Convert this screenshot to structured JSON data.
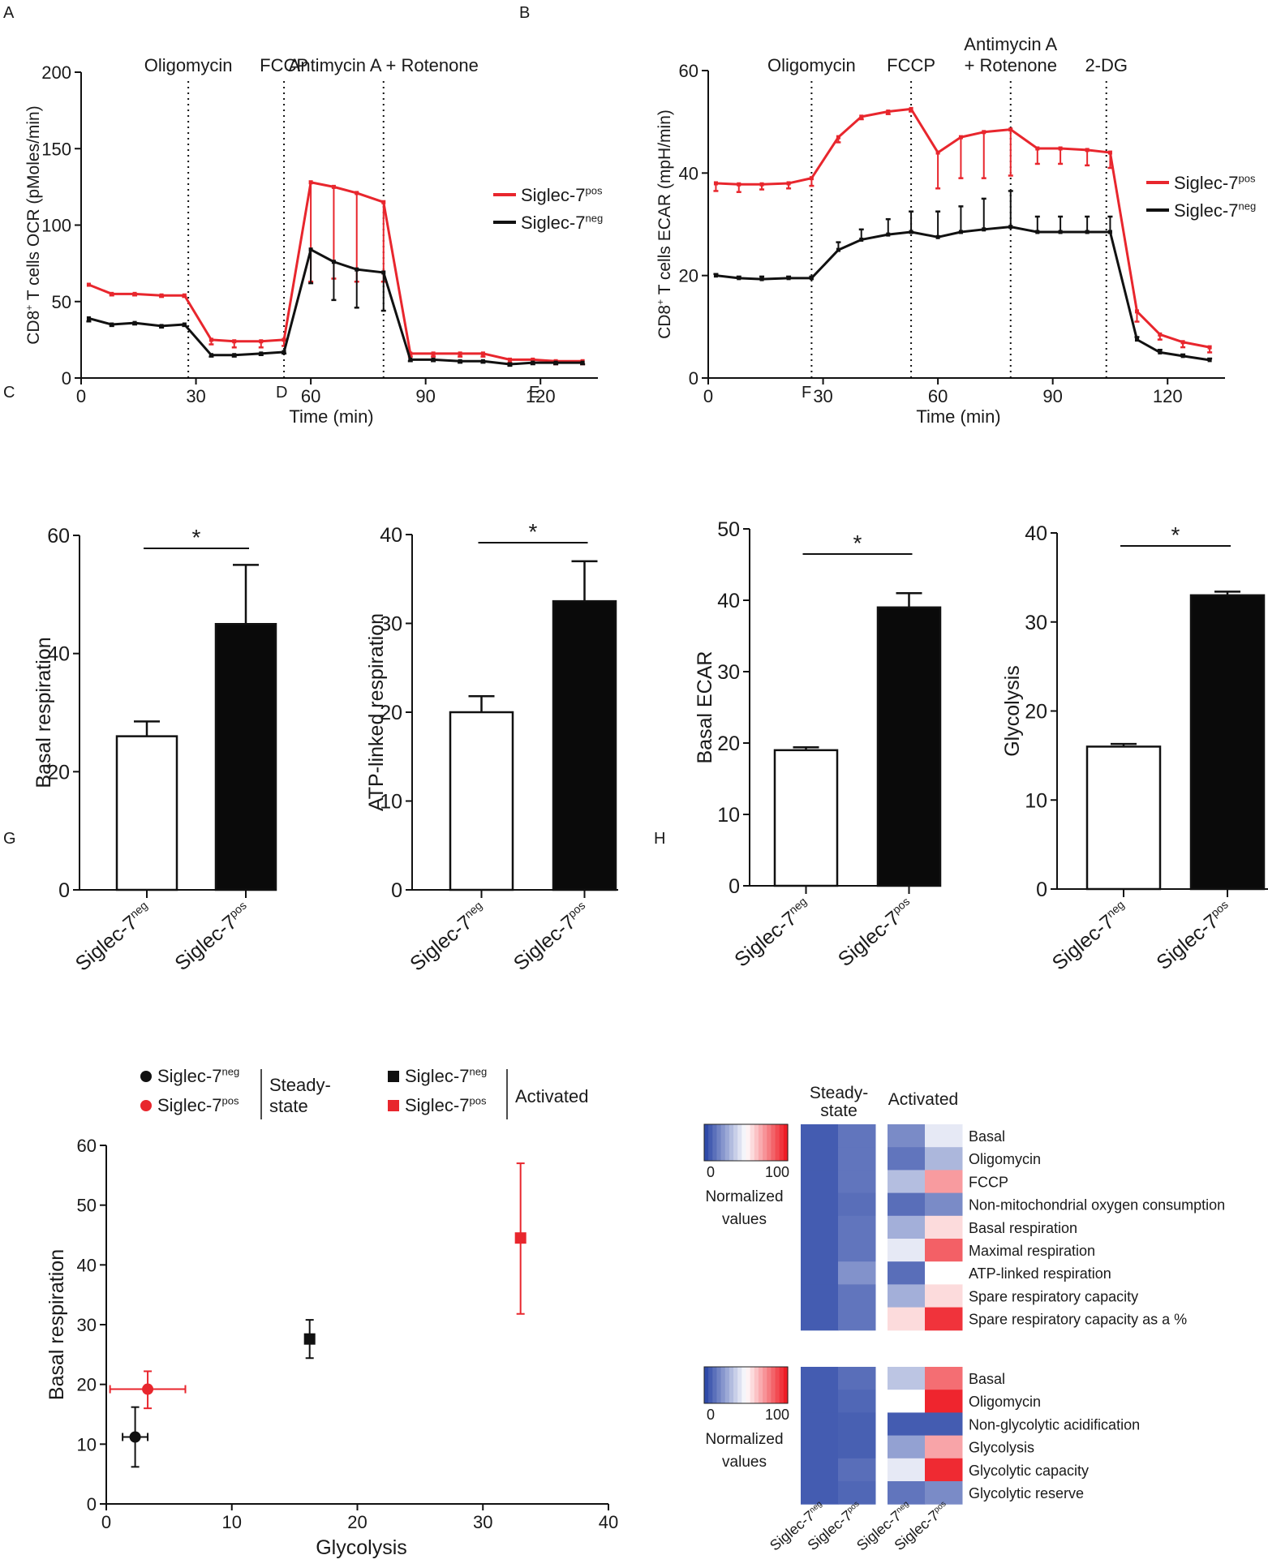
{
  "colors": {
    "pos": "#e8262d",
    "neg": "#111111",
    "heat_low": "#2f4aa8",
    "heat_mid": "#ffffff",
    "heat_high": "#ee1c25"
  },
  "chart_data": [
    {
      "id": "A",
      "panel_label": "A",
      "type": "line",
      "ylabel_pre": "CD8",
      "ylabel_sup": "+",
      "ylabel_post": " T cells OCR (pMoles/min)",
      "xlabel": "Time (min)",
      "xlim": [
        0,
        135
      ],
      "ylim": [
        0,
        200
      ],
      "xticks": [
        0,
        30,
        60,
        90,
        120
      ],
      "yticks": [
        0,
        50,
        100,
        150,
        200
      ],
      "injections": [
        {
          "x": 28,
          "lines": [
            "Oligomycin"
          ]
        },
        {
          "x": 53,
          "lines": [
            "FCCP"
          ]
        },
        {
          "x": 79,
          "lines": [
            "Antimycin A + Rotenone"
          ]
        }
      ],
      "legend": [
        {
          "key": "pos",
          "base": "Siglec-7",
          "sup": "pos"
        },
        {
          "key": "neg",
          "base": "Siglec-7",
          "sup": "neg"
        }
      ],
      "series": [
        {
          "key": "pos",
          "name": "Siglec-7pos",
          "err_dir": -1,
          "x": [
            2,
            8,
            14,
            21,
            27,
            34,
            40,
            47,
            53,
            60,
            66,
            72,
            79,
            86,
            92,
            99,
            105,
            112,
            118,
            124,
            131
          ],
          "y": [
            61,
            55,
            55,
            54,
            54,
            25,
            24,
            24,
            25,
            128,
            125,
            121,
            115,
            16,
            16,
            16,
            16,
            12,
            12,
            11,
            11
          ],
          "err": [
            0,
            1,
            1,
            1,
            1,
            3,
            4,
            4,
            4,
            65,
            60,
            58,
            52,
            2,
            2,
            2,
            2,
            2,
            2,
            2,
            2
          ]
        },
        {
          "key": "neg",
          "name": "Siglec-7neg",
          "err_dir": -1,
          "x": [
            2,
            8,
            14,
            21,
            27,
            34,
            40,
            47,
            53,
            60,
            66,
            72,
            79,
            86,
            92,
            99,
            105,
            112,
            118,
            124,
            131
          ],
          "y": [
            39,
            35,
            36,
            34,
            35,
            15,
            15,
            16,
            17,
            84,
            76,
            71,
            69,
            12,
            12,
            11,
            11,
            9,
            10,
            10,
            10
          ],
          "err": [
            2,
            1,
            1,
            1,
            1,
            1,
            1,
            1,
            1,
            22,
            25,
            25,
            25,
            1,
            1,
            1,
            1,
            1,
            1,
            1,
            1
          ]
        }
      ]
    },
    {
      "id": "B",
      "panel_label": "B",
      "type": "line",
      "ylabel_pre": "CD8",
      "ylabel_sup": "+",
      "ylabel_post": " T cells ECAR (mpH/min)",
      "xlabel": "Time (min)",
      "xlim": [
        0,
        135
      ],
      "ylim": [
        0,
        60
      ],
      "xticks": [
        0,
        30,
        60,
        90,
        120
      ],
      "yticks": [
        0,
        20,
        40,
        60
      ],
      "injections": [
        {
          "x": 27,
          "lines": [
            "Oligomycin"
          ]
        },
        {
          "x": 53,
          "lines": [
            "FCCP"
          ]
        },
        {
          "x": 79,
          "lines": [
            "Antimycin A",
            "+ Rotenone"
          ]
        },
        {
          "x": 104,
          "lines": [
            "2-DG"
          ]
        }
      ],
      "legend": [
        {
          "key": "pos",
          "base": "Siglec-7",
          "sup": "pos"
        },
        {
          "key": "neg",
          "base": "Siglec-7",
          "sup": "neg"
        }
      ],
      "series": [
        {
          "key": "pos",
          "name": "Siglec-7pos",
          "err_dir": -1,
          "x": [
            2,
            8,
            14,
            21,
            27,
            34,
            40,
            47,
            53,
            60,
            66,
            72,
            79,
            86,
            92,
            99,
            105,
            112,
            118,
            124,
            131
          ],
          "y": [
            38,
            37.8,
            37.8,
            38,
            39,
            47,
            51,
            52,
            52.5,
            44,
            47,
            48,
            48.5,
            44.8,
            44.8,
            44.5,
            44,
            13,
            8.5,
            7,
            6
          ],
          "err": [
            1.5,
            1.5,
            1,
            1,
            1.5,
            1,
            0.5,
            0.5,
            0.5,
            7,
            8,
            9,
            9,
            3,
            3,
            3,
            3,
            2,
            1,
            1,
            1
          ]
        },
        {
          "key": "neg",
          "name": "Siglec-7neg",
          "err_dir": 1,
          "x": [
            2,
            8,
            14,
            21,
            27,
            34,
            40,
            47,
            53,
            60,
            66,
            72,
            79,
            86,
            92,
            99,
            105,
            112,
            118,
            124,
            131
          ],
          "y": [
            20,
            19.5,
            19.3,
            19.5,
            19.5,
            25,
            27,
            28,
            28.5,
            27.5,
            28.5,
            29,
            29.5,
            28.5,
            28.5,
            28.5,
            28.5,
            7.5,
            5,
            4.3,
            3.5
          ],
          "err": [
            0.3,
            0.3,
            0.5,
            0.3,
            0.3,
            1.5,
            2,
            3,
            4,
            5,
            5,
            6,
            7,
            3,
            3,
            3,
            3,
            0.5,
            0.5,
            0.3,
            0.3
          ]
        }
      ]
    },
    {
      "id": "C",
      "panel_label": "C",
      "type": "bar",
      "ylabel": "Basal respiration",
      "ylim": [
        0,
        60
      ],
      "yticks": [
        0,
        20,
        40,
        60
      ],
      "categories": [
        {
          "base": "Siglec-7",
          "sup": "neg"
        },
        {
          "base": "Siglec-7",
          "sup": "pos"
        }
      ],
      "values": [
        26,
        45
      ],
      "errors": [
        2.5,
        10
      ],
      "significance": "*"
    },
    {
      "id": "D",
      "panel_label": "D",
      "type": "bar",
      "ylabel": "ATP-linked respiration",
      "ylim": [
        0,
        40
      ],
      "yticks": [
        0,
        10,
        20,
        30,
        40
      ],
      "categories": [
        {
          "base": "Siglec-7",
          "sup": "neg"
        },
        {
          "base": "Siglec-7",
          "sup": "pos"
        }
      ],
      "values": [
        20,
        32.5
      ],
      "errors": [
        1.8,
        4.5
      ],
      "significance": "*"
    },
    {
      "id": "E",
      "panel_label": "E",
      "type": "bar",
      "ylabel": "Basal ECAR",
      "ylim": [
        0,
        50
      ],
      "yticks": [
        0,
        10,
        20,
        30,
        40,
        50
      ],
      "categories": [
        {
          "base": "Siglec-7",
          "sup": "neg"
        },
        {
          "base": "Siglec-7",
          "sup": "pos"
        }
      ],
      "values": [
        19,
        39
      ],
      "errors": [
        0.4,
        2
      ],
      "significance": "*"
    },
    {
      "id": "F",
      "panel_label": "F",
      "type": "bar",
      "ylabel": "Glycolysis",
      "ylim": [
        0,
        40
      ],
      "yticks": [
        0,
        10,
        20,
        30,
        40
      ],
      "categories": [
        {
          "base": "Siglec-7",
          "sup": "neg"
        },
        {
          "base": "Siglec-7",
          "sup": "pos"
        }
      ],
      "values": [
        16,
        33
      ],
      "errors": [
        0.3,
        0.4
      ],
      "significance": "*"
    },
    {
      "id": "G",
      "panel_label": "G",
      "type": "scatter",
      "xlabel": "Glycolysis",
      "ylabel": "Basal respiration",
      "xlim": [
        0,
        40
      ],
      "ylim": [
        0,
        60
      ],
      "xticks": [
        0,
        10,
        20,
        30,
        40
      ],
      "yticks": [
        0,
        10,
        20,
        30,
        40,
        50,
        60
      ],
      "legend_groups": [
        {
          "label_lines": [
            "Steady-",
            "state"
          ],
          "items": [
            {
              "marker": "circle",
              "key": "neg",
              "base": "Siglec-7",
              "sup": "neg"
            },
            {
              "marker": "circle",
              "key": "pos",
              "base": "Siglec-7",
              "sup": "pos"
            }
          ]
        },
        {
          "label_lines": [
            "Activated"
          ],
          "items": [
            {
              "marker": "square",
              "key": "neg",
              "base": "Siglec-7",
              "sup": "neg"
            },
            {
              "marker": "square",
              "key": "pos",
              "base": "Siglec-7",
              "sup": "pos"
            }
          ]
        }
      ],
      "points": [
        {
          "key": "neg",
          "marker": "circle",
          "x": 2.3,
          "y": 11.2,
          "xerr": 1.0,
          "yerr_low": 5,
          "yerr_high": 5
        },
        {
          "key": "pos",
          "marker": "circle",
          "x": 3.3,
          "y": 19.2,
          "xerr": 3.0,
          "yerr_low": 3.2,
          "yerr_high": 3.0
        },
        {
          "key": "neg",
          "marker": "square",
          "x": 16.2,
          "y": 27.6,
          "xerr": 0,
          "yerr_low": 3.2,
          "yerr_high": 3.2
        },
        {
          "key": "pos",
          "marker": "square",
          "x": 33,
          "y": 44.5,
          "xerr": 0,
          "yerr_low": 12.7,
          "yerr_high": 12.5
        }
      ]
    },
    {
      "id": "H",
      "panel_label": "H",
      "type": "heatmap",
      "col_groups": [
        {
          "label_lines": [
            "Steady-",
            "state"
          ]
        },
        {
          "label_lines": [
            "Activated"
          ]
        }
      ],
      "columns": [
        {
          "base": "Siglec-7",
          "sup": "neg"
        },
        {
          "base": "Siglec-7",
          "sup": "pos"
        },
        {
          "base": "Siglec-7",
          "sup": "neg"
        },
        {
          "base": "Siglec-7",
          "sup": "pos"
        }
      ],
      "colorbar": {
        "min_label": "0",
        "max_label": "100",
        "label_lines": [
          "Normalized",
          "values"
        ]
      },
      "blocks": [
        {
          "rows": [
            "Basal",
            "Oligomycin",
            "FCCP",
            "Non-mitochondrial oxygen consumption",
            "Basal respiration",
            "Maximal respiration",
            "ATP-linked respiration",
            "Spare respiratory capacity",
            "Spare respiratory capacity as a %"
          ],
          "values": [
            [
              5,
              12,
              18,
              44
            ],
            [
              5,
              12,
              12,
              30
            ],
            [
              5,
              12,
              32,
              72
            ],
            [
              5,
              10,
              10,
              18
            ],
            [
              5,
              12,
              28,
              58
            ],
            [
              5,
              12,
              44,
              85
            ],
            [
              5,
              20,
              10,
              50
            ],
            [
              5,
              12,
              28,
              58
            ],
            [
              5,
              12,
              58,
              95
            ]
          ]
        },
        {
          "rows": [
            "Basal",
            "Oligomycin",
            "Non-glycolytic acidification",
            "Glycolysis",
            "Glycolytic capacity",
            "Glycolytic reserve"
          ],
          "values": [
            [
              5,
              10,
              34,
              82
            ],
            [
              5,
              8,
              50,
              98
            ],
            [
              5,
              6,
              5,
              5
            ],
            [
              5,
              6,
              24,
              70
            ],
            [
              5,
              10,
              44,
              97
            ],
            [
              5,
              8,
              12,
              18
            ]
          ]
        }
      ]
    }
  ]
}
